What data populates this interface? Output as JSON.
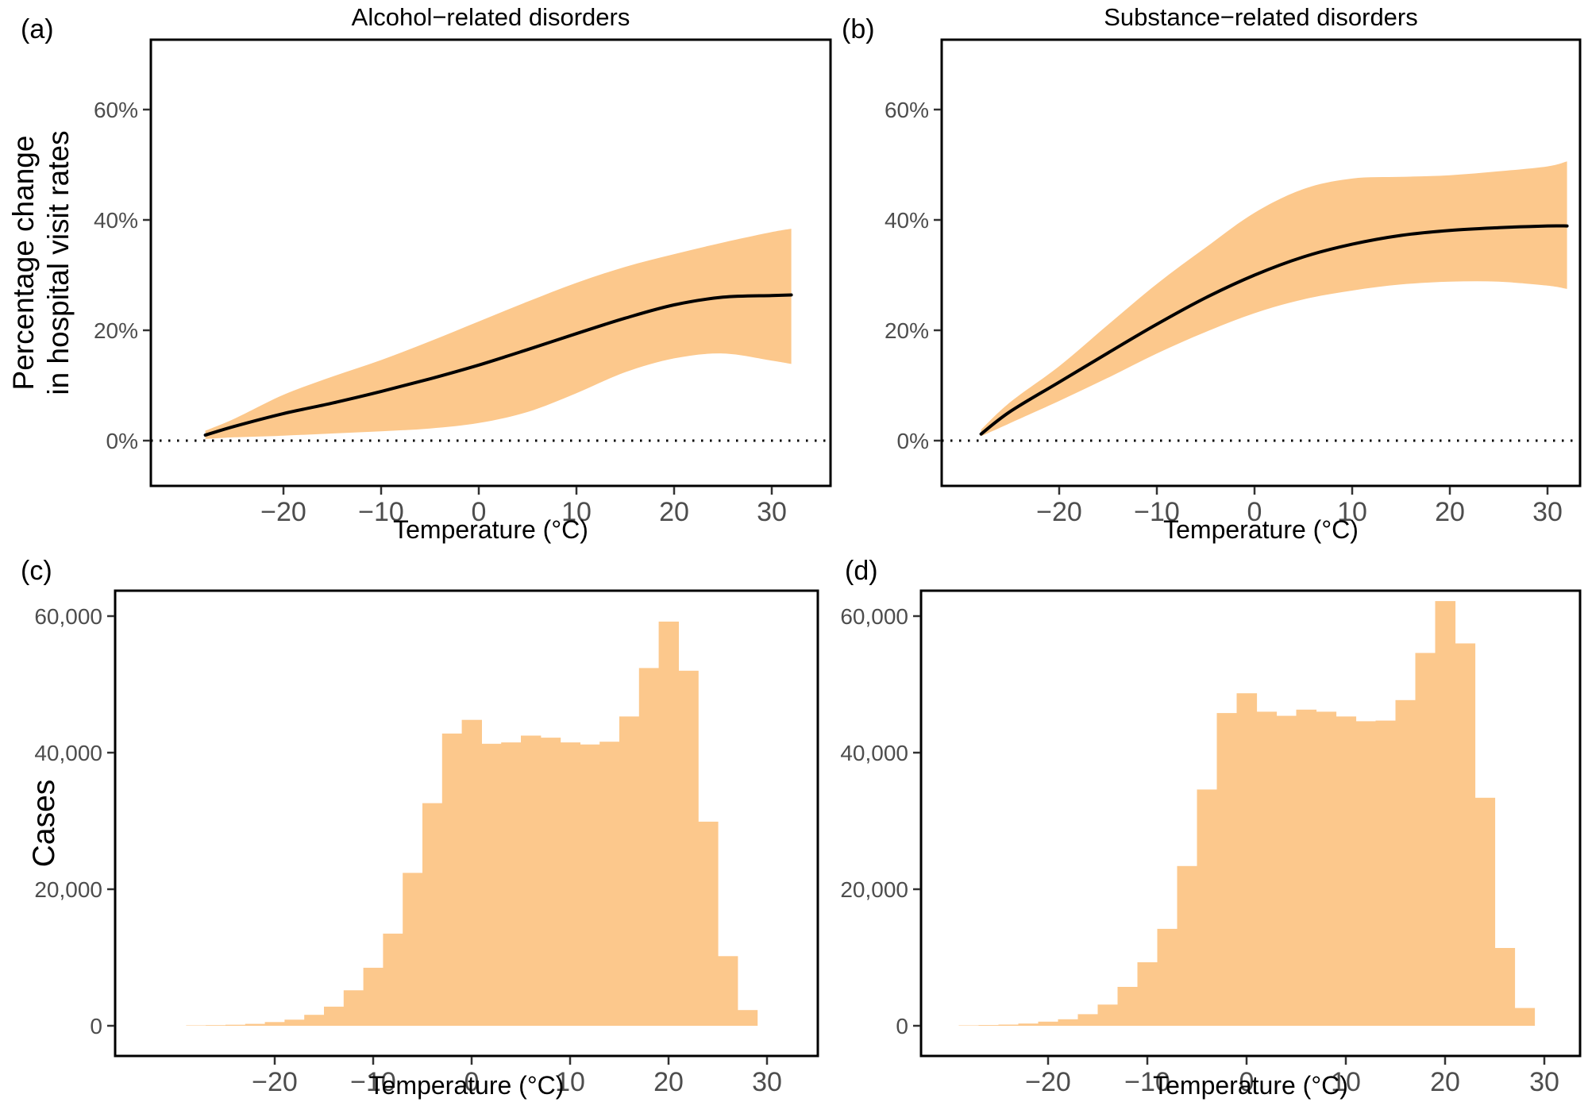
{
  "figure": {
    "row1_ylabel_lines": [
      "Percentage change",
      "in hospital visit rates"
    ],
    "row2_ylabel": "Cases",
    "panel_letters": {
      "a": "(a)",
      "b": "(b)",
      "c": "(c)",
      "d": "(d)"
    },
    "colors": {
      "band_fill": "#FCC88C",
      "bar_fill": "#FCC88C",
      "curve": "#000000",
      "zero_line": "#000000",
      "panel_border": "#000000",
      "tick_label": "#4d4d4d",
      "tick_mark": "#333333",
      "title_text": "#000000"
    }
  },
  "chart_data": [
    {
      "id": "a",
      "type": "line",
      "title": "Alcohol−related disorders",
      "xlabel": "Temperature (°C)",
      "ylabel": "Percentage change in hospital visit rates",
      "xlim": [
        -33,
        35
      ],
      "ylim": [
        -8,
        73
      ],
      "x_ticks": [
        -20,
        -10,
        0,
        10,
        20,
        30
      ],
      "x_tick_labels": [
        "−20",
        "−10",
        "0",
        "10",
        "20",
        "30"
      ],
      "y_ticks": [
        0,
        20,
        40,
        60
      ],
      "y_tick_labels": [
        "0%",
        "20%",
        "40%",
        "60%"
      ],
      "zero_reference_line": 0,
      "grid": false,
      "x": [
        -28,
        -25,
        -20,
        -15,
        -10,
        -5,
        0,
        5,
        10,
        15,
        20,
        25,
        30,
        32
      ],
      "y": [
        1.0,
        2.6,
        4.9,
        6.8,
        8.9,
        11.2,
        13.7,
        16.5,
        19.4,
        22.2,
        24.6,
        26.0,
        26.3,
        26.4
      ],
      "y_upper": [
        1.8,
        4.0,
        8.3,
        11.6,
        14.6,
        18.0,
        21.6,
        25.2,
        28.6,
        31.5,
        33.8,
        35.9,
        37.8,
        38.4
      ],
      "y_lower": [
        0.3,
        0.6,
        0.9,
        1.3,
        1.7,
        2.2,
        3.2,
        5.2,
        8.6,
        12.4,
        14.9,
        15.8,
        14.5,
        13.9
      ]
    },
    {
      "id": "b",
      "type": "line",
      "title": "Substance−related disorders",
      "xlabel": "Temperature (°C)",
      "ylabel": "Percentage change in hospital visit rates",
      "xlim": [
        -33,
        35
      ],
      "ylim": [
        -8,
        73
      ],
      "x_ticks": [
        -20,
        -10,
        0,
        10,
        20,
        30
      ],
      "x_tick_labels": [
        "−20",
        "−10",
        "0",
        "10",
        "20",
        "30"
      ],
      "y_ticks": [
        0,
        20,
        40,
        60
      ],
      "y_tick_labels": [
        "0%",
        "20%",
        "40%",
        "60%"
      ],
      "zero_reference_line": 0,
      "grid": false,
      "x": [
        -28,
        -25,
        -20,
        -15,
        -10,
        -5,
        0,
        5,
        10,
        15,
        20,
        25,
        30,
        32
      ],
      "y": [
        1.2,
        5.3,
        10.6,
        15.9,
        21.1,
        25.9,
        30.0,
        33.3,
        35.6,
        37.2,
        38.1,
        38.6,
        38.9,
        38.9
      ],
      "y_upper": [
        2.0,
        7.0,
        13.5,
        21.0,
        28.4,
        35.0,
        41.3,
        45.6,
        47.5,
        47.8,
        48.1,
        48.8,
        49.7,
        50.6
      ],
      "y_lower": [
        0.8,
        3.2,
        7.2,
        11.4,
        15.8,
        19.7,
        23.1,
        25.6,
        27.2,
        28.3,
        28.8,
        28.8,
        28.1,
        27.5
      ]
    },
    {
      "id": "c",
      "type": "bar",
      "title": "",
      "xlabel": "Temperature (°C)",
      "ylabel": "Cases",
      "xlim": [
        -36,
        35
      ],
      "ylim": [
        -4000,
        64000
      ],
      "x_ticks": [
        -20,
        -10,
        0,
        10,
        20,
        30
      ],
      "x_tick_labels": [
        "−20",
        "−10",
        "0",
        "10",
        "20",
        "30"
      ],
      "y_ticks": [
        0,
        20000,
        40000,
        60000
      ],
      "y_tick_labels": [
        "0",
        "20,000",
        "40,000",
        "60,000"
      ],
      "grid": false,
      "bin_width": 2,
      "categories": [
        -28,
        -26,
        -24,
        -22,
        -20,
        -18,
        -16,
        -14,
        -12,
        -10,
        -8,
        -6,
        -4,
        -2,
        0,
        2,
        4,
        6,
        8,
        10,
        12,
        14,
        16,
        18,
        20,
        22,
        24,
        26,
        28
      ],
      "values": [
        60,
        90,
        150,
        280,
        550,
        900,
        1600,
        2800,
        5200,
        8500,
        13500,
        22400,
        32600,
        42800,
        44800,
        41300,
        41500,
        42500,
        42200,
        41500,
        41200,
        41600,
        45300,
        52400,
        59200,
        52000,
        29900,
        10200,
        2300
      ]
    },
    {
      "id": "d",
      "type": "bar",
      "title": "",
      "xlabel": "Temperature (°C)",
      "ylabel": "Cases",
      "xlim": [
        -36,
        35
      ],
      "ylim": [
        -4000,
        64000
      ],
      "x_ticks": [
        -20,
        -10,
        0,
        10,
        20,
        30
      ],
      "x_tick_labels": [
        "−20",
        "−10",
        "0",
        "10",
        "20",
        "30"
      ],
      "y_ticks": [
        0,
        20000,
        40000,
        60000
      ],
      "y_tick_labels": [
        "0",
        "20,000",
        "40,000",
        "60,000"
      ],
      "grid": false,
      "bin_width": 2,
      "categories": [
        -28,
        -26,
        -24,
        -22,
        -20,
        -18,
        -16,
        -14,
        -12,
        -10,
        -8,
        -6,
        -4,
        -2,
        0,
        2,
        4,
        6,
        8,
        10,
        12,
        14,
        16,
        18,
        20,
        22,
        24,
        26,
        28
      ],
      "values": [
        60,
        100,
        180,
        320,
        600,
        950,
        1700,
        3100,
        5700,
        9300,
        14200,
        23400,
        34600,
        45800,
        48700,
        46000,
        45400,
        46300,
        46000,
        45300,
        44600,
        44700,
        47700,
        54600,
        62200,
        56000,
        33400,
        11400,
        2600
      ]
    }
  ]
}
